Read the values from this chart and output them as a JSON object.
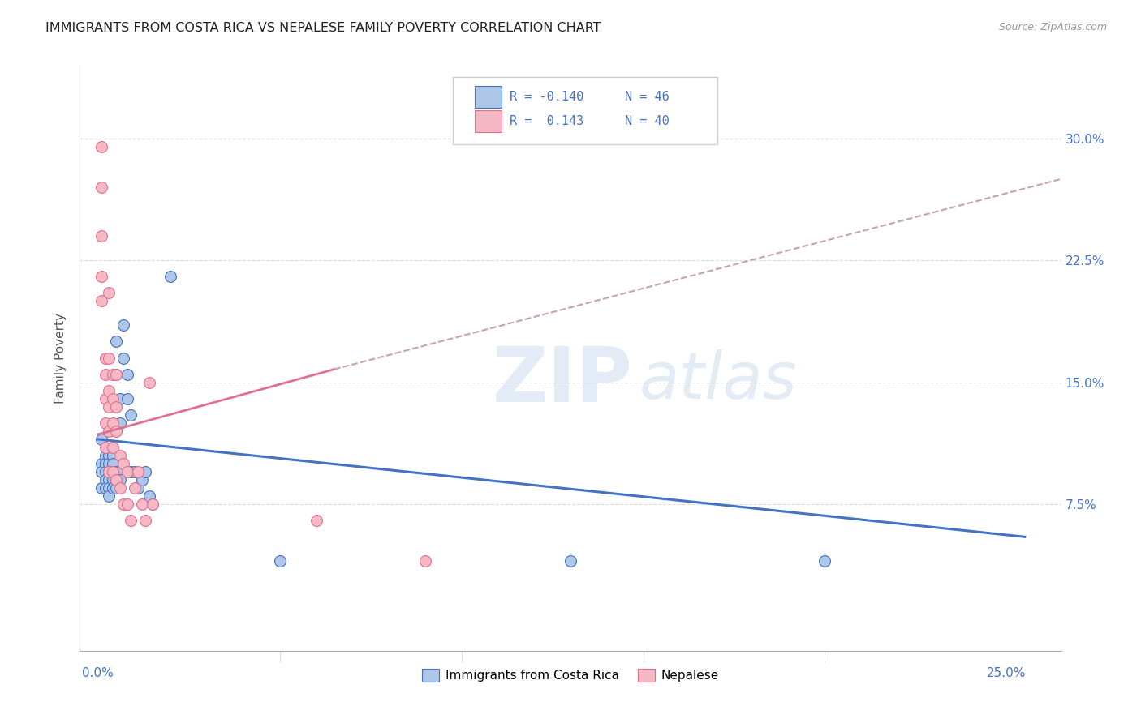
{
  "title": "IMMIGRANTS FROM COSTA RICA VS NEPALESE FAMILY POVERTY CORRELATION CHART",
  "source": "Source: ZipAtlas.com",
  "ylabel": "Family Poverty",
  "xticklabels_bottom": [
    "0.0%",
    "25.0%"
  ],
  "xticks_bottom": [
    0.0,
    0.25
  ],
  "yticklabels": [
    "7.5%",
    "15.0%",
    "22.5%",
    "30.0%"
  ],
  "yticks": [
    0.075,
    0.15,
    0.225,
    0.3
  ],
  "xlim": [
    -0.005,
    0.265
  ],
  "ylim": [
    -0.015,
    0.345
  ],
  "color_blue": "#aec6e8",
  "color_pink": "#f5b8c4",
  "line_color_blue": "#4472c4",
  "line_color_pink_solid": "#e07090",
  "line_color_pink_dash": "#c8a0b0",
  "watermark_zip": "ZIP",
  "watermark_atlas": "atlas",
  "blue_x": [
    0.001,
    0.001,
    0.001,
    0.001,
    0.002,
    0.002,
    0.002,
    0.002,
    0.002,
    0.002,
    0.003,
    0.003,
    0.003,
    0.003,
    0.003,
    0.003,
    0.003,
    0.004,
    0.004,
    0.004,
    0.004,
    0.004,
    0.005,
    0.005,
    0.005,
    0.005,
    0.006,
    0.006,
    0.006,
    0.006,
    0.007,
    0.007,
    0.008,
    0.008,
    0.009,
    0.009,
    0.01,
    0.011,
    0.012,
    0.013,
    0.014,
    0.015,
    0.02,
    0.05,
    0.13,
    0.2
  ],
  "blue_y": [
    0.115,
    0.1,
    0.095,
    0.085,
    0.105,
    0.1,
    0.1,
    0.095,
    0.09,
    0.085,
    0.105,
    0.105,
    0.1,
    0.095,
    0.09,
    0.085,
    0.08,
    0.105,
    0.1,
    0.095,
    0.09,
    0.085,
    0.175,
    0.155,
    0.095,
    0.085,
    0.14,
    0.125,
    0.095,
    0.09,
    0.185,
    0.165,
    0.155,
    0.14,
    0.13,
    0.095,
    0.095,
    0.085,
    0.09,
    0.095,
    0.08,
    0.075,
    0.215,
    0.04,
    0.04,
    0.04
  ],
  "pink_x": [
    0.001,
    0.001,
    0.001,
    0.001,
    0.001,
    0.002,
    0.002,
    0.002,
    0.002,
    0.002,
    0.003,
    0.003,
    0.003,
    0.003,
    0.003,
    0.003,
    0.004,
    0.004,
    0.004,
    0.004,
    0.004,
    0.005,
    0.005,
    0.005,
    0.005,
    0.006,
    0.006,
    0.007,
    0.007,
    0.008,
    0.008,
    0.009,
    0.01,
    0.011,
    0.012,
    0.013,
    0.014,
    0.015,
    0.06,
    0.09
  ],
  "pink_y": [
    0.295,
    0.27,
    0.24,
    0.215,
    0.2,
    0.165,
    0.155,
    0.14,
    0.125,
    0.11,
    0.205,
    0.165,
    0.145,
    0.135,
    0.12,
    0.095,
    0.155,
    0.14,
    0.125,
    0.11,
    0.095,
    0.155,
    0.135,
    0.12,
    0.09,
    0.105,
    0.085,
    0.1,
    0.075,
    0.095,
    0.075,
    0.065,
    0.085,
    0.095,
    0.075,
    0.065,
    0.15,
    0.075,
    0.065,
    0.04
  ],
  "trend_blue_x0": 0.0,
  "trend_blue_x1": 0.255,
  "trend_blue_y0": 0.115,
  "trend_blue_y1": 0.055,
  "trend_pink_solid_x0": 0.0,
  "trend_pink_solid_x1": 0.065,
  "trend_pink_solid_y0": 0.118,
  "trend_pink_solid_y1": 0.158,
  "trend_pink_dash_x0": 0.065,
  "trend_pink_dash_x1": 0.265,
  "trend_pink_dash_y0": 0.158,
  "trend_pink_dash_y1": 0.275
}
